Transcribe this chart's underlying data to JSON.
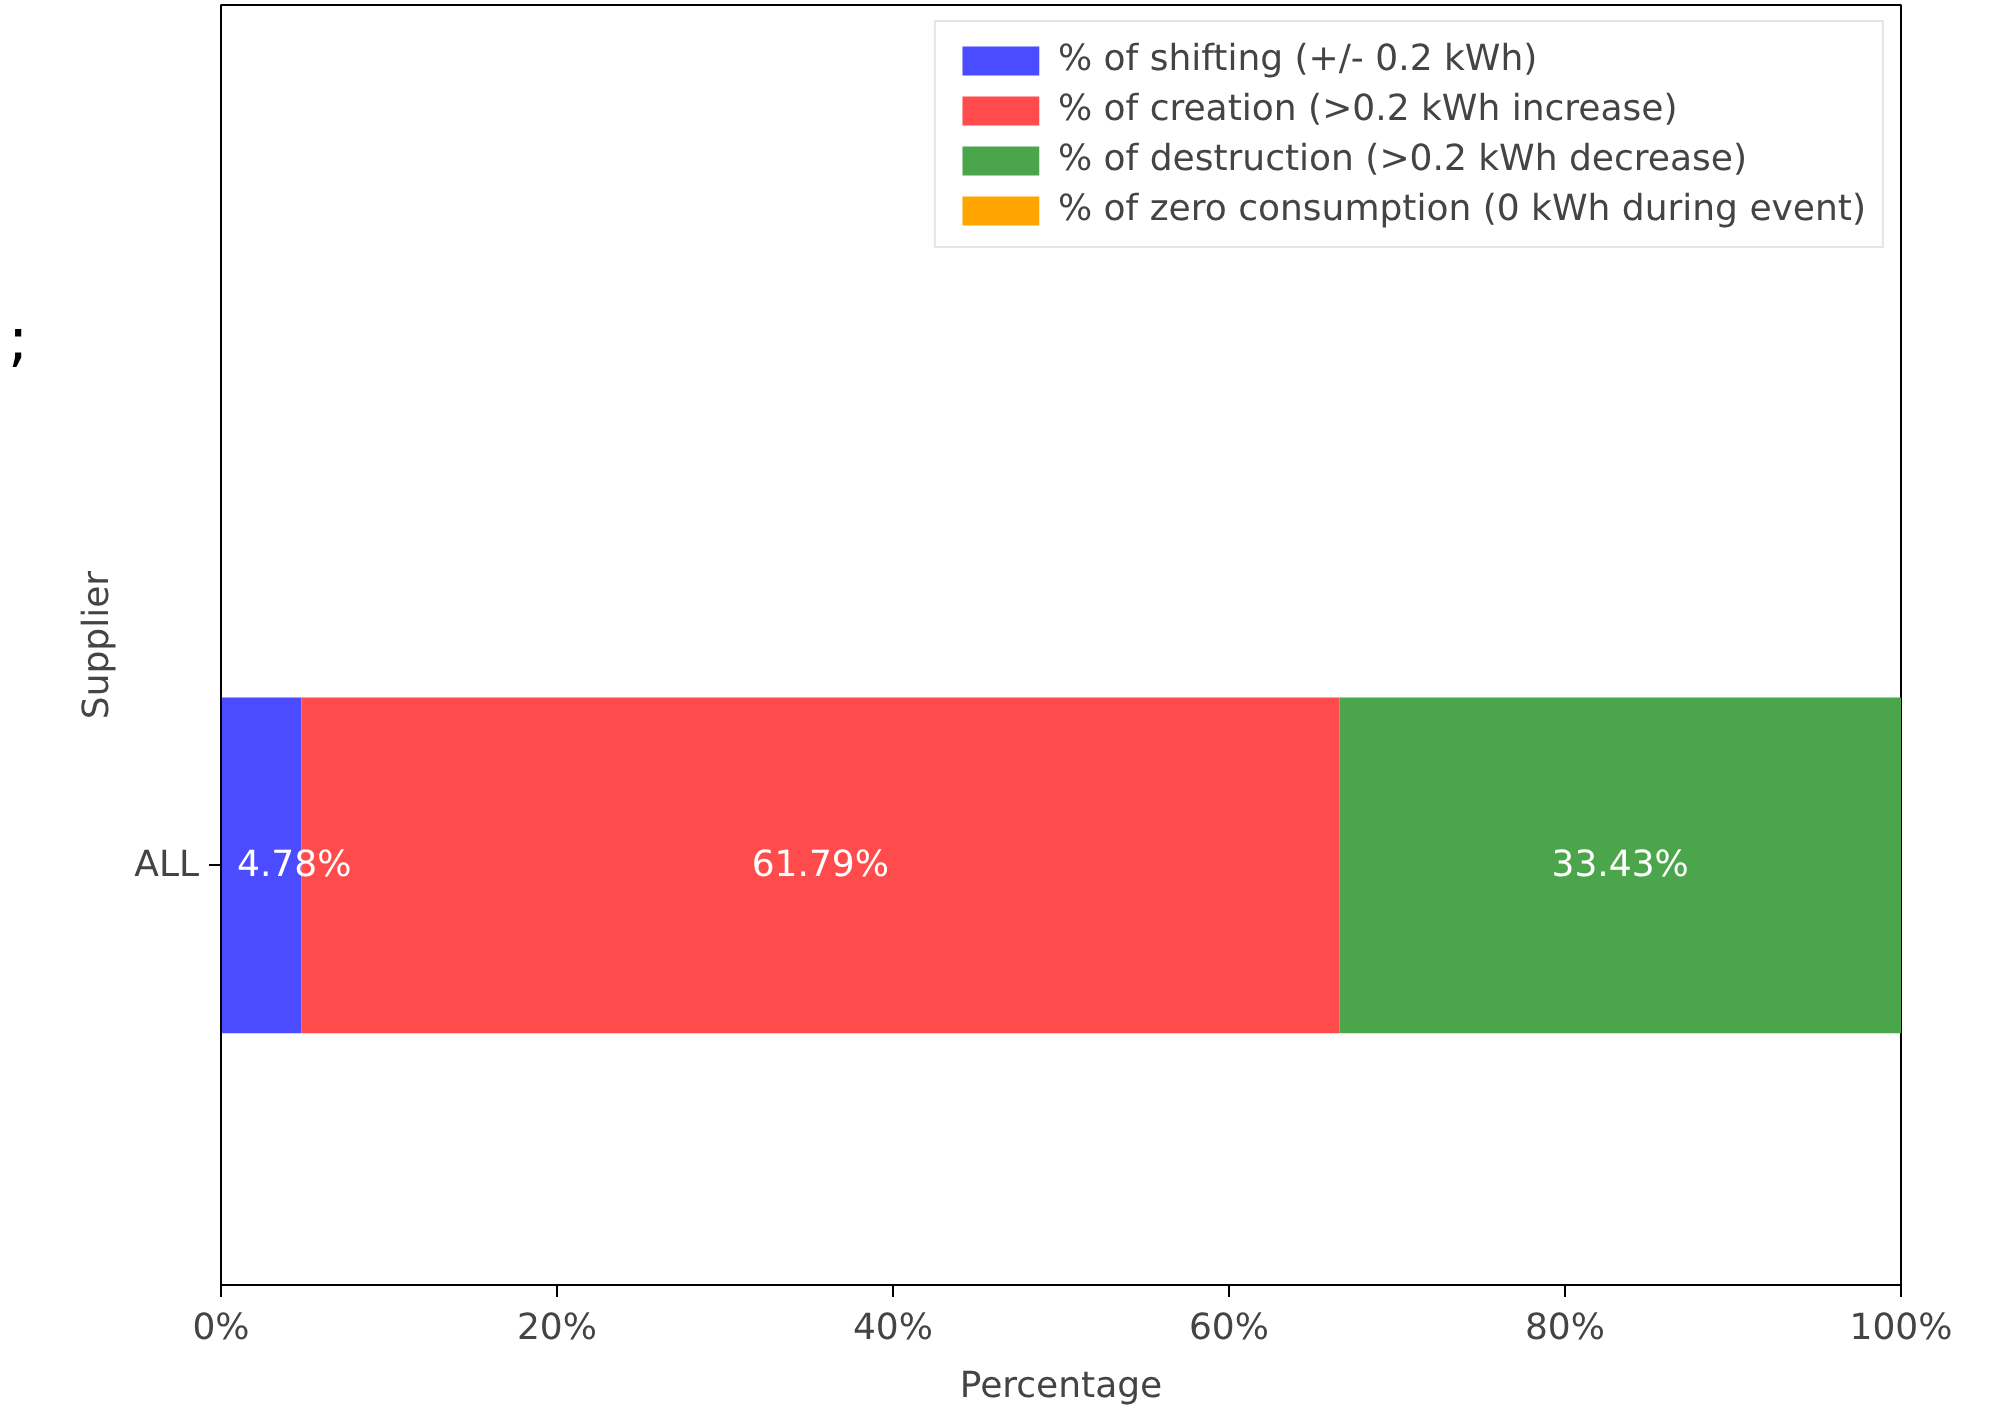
{
  "chart_data": {
    "type": "bar",
    "orientation": "horizontal",
    "stacked": true,
    "xlabel": "Percentage",
    "ylabel": "Supplier",
    "categories": [
      "ALL"
    ],
    "series": [
      {
        "name": "% of shifting (+/- 0.2 kWh)",
        "color": "#4b4bff",
        "values": [
          4.78
        ],
        "value_labels": [
          "4.78%"
        ]
      },
      {
        "name": "% of creation (>0.2 kWh increase)",
        "color": "#ff4b4b",
        "values": [
          61.79
        ],
        "value_labels": [
          "61.79%"
        ]
      },
      {
        "name": "% of destruction (>0.2 kWh decrease)",
        "color": "#4ba64b",
        "values": [
          33.43
        ],
        "value_labels": [
          "33.43%"
        ]
      },
      {
        "name": "% of zero consumption (0 kWh during event)",
        "color": "#ffa500",
        "values": [
          0
        ],
        "value_labels": [
          null
        ]
      }
    ],
    "xlim": [
      0,
      100
    ],
    "xticks": [
      {
        "value": 0,
        "label": "0%"
      },
      {
        "value": 20,
        "label": "20%"
      },
      {
        "value": 40,
        "label": "40%"
      },
      {
        "value": 60,
        "label": "60%"
      },
      {
        "value": 80,
        "label": "80%"
      },
      {
        "value": 100,
        "label": "100%"
      }
    ],
    "legend": "top right",
    "grid": false,
    "annotations": [
      ";"
    ]
  }
}
